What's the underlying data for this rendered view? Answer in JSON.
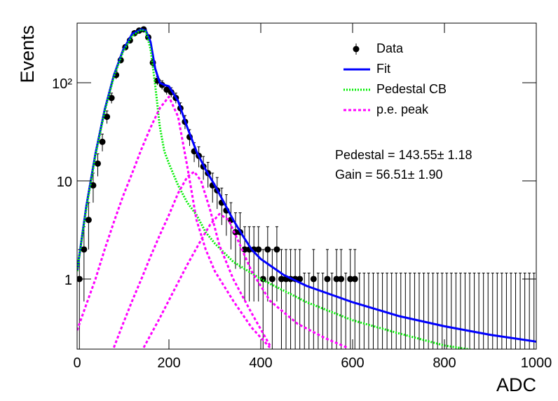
{
  "chart_data": {
    "type": "histogram_fit",
    "xlabel": "ADC",
    "ylabel": "Events",
    "log_y": true,
    "xlim": [
      0,
      1000
    ],
    "ylim": [
      0.193,
      405
    ],
    "xticks": [
      0,
      200,
      400,
      600,
      800,
      1000
    ],
    "yticks": [
      1,
      10,
      {
        "value": 100,
        "label": "10²"
      }
    ],
    "annotations": [
      "Pedestal = 143.55± 1.18",
      "Gain = 56.51± 1.90"
    ],
    "data": {
      "name": "Data",
      "color": "#000000",
      "x": [
        5,
        15,
        25,
        35,
        45,
        55,
        65,
        75,
        85,
        95,
        105,
        115,
        125,
        135,
        145,
        155,
        165,
        175,
        185,
        195,
        205,
        215,
        225,
        235,
        245,
        255,
        265,
        275,
        285,
        295,
        305,
        315,
        325,
        335,
        345,
        355,
        365,
        375,
        385,
        395,
        405,
        415,
        425,
        435,
        445,
        455,
        465,
        475,
        485,
        495,
        505,
        515,
        525,
        535,
        545,
        555,
        565,
        575,
        585,
        595,
        605,
        615,
        625,
        635,
        645,
        655,
        665,
        675,
        685,
        695,
        705,
        715,
        725,
        735,
        745,
        755,
        765,
        775,
        785,
        795,
        805,
        815,
        825,
        835,
        845,
        855,
        865,
        875,
        885,
        895,
        905,
        915,
        925,
        935,
        945,
        955,
        965,
        975,
        985,
        995
      ],
      "values": [
        1,
        2,
        4,
        9,
        15,
        25,
        45,
        70,
        120,
        170,
        230,
        270,
        320,
        340,
        350,
        290,
        160,
        105,
        95,
        85,
        80,
        70,
        55,
        40,
        28,
        20,
        18,
        14,
        12,
        9,
        8,
        6,
        5,
        4,
        3,
        3,
        2,
        2,
        2,
        2,
        1,
        2,
        1,
        2,
        1,
        1,
        1,
        1,
        1,
        0,
        0,
        1,
        0,
        0,
        1,
        0,
        1,
        1,
        0,
        1,
        1,
        0,
        0,
        0,
        0,
        0,
        0,
        0,
        0,
        0,
        0,
        0,
        0,
        0,
        0,
        0,
        0,
        0,
        0,
        0,
        0,
        0,
        0,
        0,
        0,
        0,
        0,
        0,
        0,
        0,
        0,
        0,
        0,
        0,
        0,
        0,
        0,
        0,
        0,
        0
      ],
      "errors": [
        1,
        1.41,
        2,
        3,
        3.87,
        5,
        6.71,
        8.37,
        10.95,
        13.04,
        15.17,
        16.43,
        17.89,
        18.44,
        18.71,
        17.03,
        12.65,
        10.25,
        9.75,
        9.22,
        8.94,
        8.37,
        7.42,
        6.32,
        5.29,
        4.47,
        4.24,
        3.74,
        3.46,
        3,
        2.83,
        2.45,
        2.24,
        2,
        1.73,
        1.73,
        1.41,
        1.41,
        1.41,
        1.41,
        1,
        1.41,
        1,
        1.41,
        1,
        1,
        1,
        1,
        1,
        1.15,
        1.15,
        1,
        1.15,
        1.15,
        1,
        1.15,
        1,
        1,
        1.15,
        1,
        1,
        1.15,
        1.15,
        1.15,
        1.15,
        1.15,
        1.15,
        1.15,
        1.15,
        1.15,
        1.15,
        1.15,
        1.15,
        1.15,
        1.15,
        1.15,
        1.15,
        1.15,
        1.15,
        1.15,
        1.15,
        1.15,
        1.15,
        1.15,
        1.15,
        1.15,
        1.15,
        1.15,
        1.15,
        1.15,
        1.15,
        1.15,
        1.15,
        1.15,
        1.15,
        1.15,
        1.15,
        1.15,
        1.15,
        1.15
      ]
    },
    "curves": [
      {
        "name": "Fit",
        "color": "#0000ff",
        "style": "solid",
        "parts": [
          {
            "x": [
              0,
              20,
              40,
              60,
              80,
              100,
              120,
              140,
              150,
              160,
              170,
              180,
              190,
              200,
              220,
              240,
              260,
              280,
              300,
              320,
              340,
              360,
              380,
              400,
              450,
              500,
              600,
              700,
              800,
              900,
              1000
            ],
            "values": [
              1.2,
              5.5,
              19,
              53,
              119,
              215,
              315,
              350,
              340,
              260,
              140,
              100,
              95,
              92,
              65,
              35,
              20,
              13,
              9,
              6,
              4,
              2.8,
              2,
              1.6,
              1.1,
              0.85,
              0.58,
              0.42,
              0.33,
              0.27,
              0.23
            ]
          }
        ]
      },
      {
        "name": "Pedestal CB",
        "color": "#00ee00",
        "style": "dotted",
        "parts": [
          {
            "x": [
              0,
              20,
              40,
              60,
              80,
              100,
              120,
              140,
              150,
              160,
              170,
              180,
              190,
              200,
              220,
              240,
              260,
              280,
              300,
              340,
              400,
              500,
              600,
              700,
              800,
              860
            ],
            "values": [
              1.2,
              5.2,
              18.2,
              51,
              115,
              207,
              300,
              348,
              330,
              220,
              95,
              36,
              20,
              15,
              9,
              6,
              4.5,
              3,
              2.3,
              1.5,
              1,
              0.58,
              0.38,
              0.28,
              0.21,
              0.19
            ]
          }
        ]
      },
      {
        "name": "p.e. peak",
        "color": "#ff00ff",
        "style": "dashed",
        "parts": [
          {
            "x": [
              0,
              20,
              40,
              60,
              80,
              100,
              120,
              140,
              160,
              180,
              200,
              220,
              240,
              260,
              280,
              300,
              340,
              380,
              420
            ],
            "values": [
              0.3,
              0.55,
              1,
              2,
              3.8,
              7,
              12,
              21,
              35,
              55,
              72,
              45,
              14,
              4,
              2,
              1.2,
              0.6,
              0.32,
              0.2
            ]
          },
          {
            "x": [
              80,
              100,
              120,
              140,
              160,
              180,
              200,
              220,
              240,
              255,
              270,
              290,
              310,
              340,
              380,
              420
            ],
            "values": [
              0.2,
              0.35,
              0.6,
              1,
              1.7,
              2.8,
              4.5,
              7.5,
              11,
              12.4,
              10,
              5,
              2.2,
              1,
              0.45,
              0.21
            ]
          },
          {
            "x": [
              145,
              180,
              210,
              240,
              270,
              290,
              310,
              330,
              350,
              380,
              420,
              480,
              540,
              588
            ],
            "values": [
              0.2,
              0.4,
              0.75,
              1.4,
              2.5,
              3.6,
              4.6,
              4,
              2.5,
              1.2,
              0.6,
              0.35,
              0.25,
              0.2
            ]
          }
        ]
      }
    ],
    "legend_position": "upper right"
  }
}
